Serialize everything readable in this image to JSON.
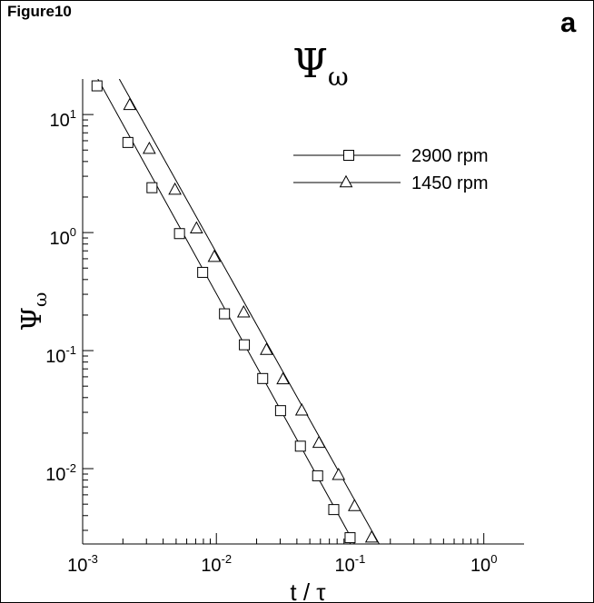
{
  "figure_label": "Figure10",
  "panel_letter": "a",
  "chart_data": {
    "type": "scatter",
    "title": "Ψω",
    "xlabel": "t / τ",
    "ylabel": "Ψω",
    "xscale": "log",
    "yscale": "log",
    "xlim": [
      0.001,
      2
    ],
    "ylim": [
      0.0023,
      20
    ],
    "x_ticks": [
      {
        "value": 0.001,
        "base": "10",
        "exp": "-3"
      },
      {
        "value": 0.01,
        "base": "10",
        "exp": "-2"
      },
      {
        "value": 0.1,
        "base": "10",
        "exp": "-1"
      },
      {
        "value": 1,
        "base": "10",
        "exp": "0"
      }
    ],
    "y_ticks": [
      {
        "value": 0.01,
        "base": "10",
        "exp": "-2"
      },
      {
        "value": 0.1,
        "base": "10",
        "exp": "-1"
      },
      {
        "value": 1,
        "base": "10",
        "exp": "0"
      },
      {
        "value": 10,
        "base": "10",
        "exp": "1"
      }
    ],
    "legend_position": "top-right",
    "grid": false,
    "series": [
      {
        "name": "2900 rpm",
        "marker": "square",
        "fit_line": {
          "x": [
            0.0013,
            0.108
          ],
          "y": [
            20,
            0.0023
          ]
        },
        "points": [
          {
            "x": 0.00128,
            "y": 17.5
          },
          {
            "x": 0.00218,
            "y": 5.8
          },
          {
            "x": 0.0033,
            "y": 2.4
          },
          {
            "x": 0.0053,
            "y": 0.98
          },
          {
            "x": 0.0079,
            "y": 0.46
          },
          {
            "x": 0.0115,
            "y": 0.205
          },
          {
            "x": 0.0162,
            "y": 0.112
          },
          {
            "x": 0.0222,
            "y": 0.058
          },
          {
            "x": 0.0302,
            "y": 0.031
          },
          {
            "x": 0.0425,
            "y": 0.0155
          },
          {
            "x": 0.0572,
            "y": 0.0087
          },
          {
            "x": 0.0755,
            "y": 0.0045
          },
          {
            "x": 0.1,
            "y": 0.0026
          }
        ]
      },
      {
        "name": "1450 rpm",
        "marker": "triangle",
        "fit_line": {
          "x": [
            0.00188,
            0.165
          ],
          "y": [
            20,
            0.0023
          ]
        },
        "points": [
          {
            "x": 0.00225,
            "y": 12.0
          },
          {
            "x": 0.00315,
            "y": 5.1
          },
          {
            "x": 0.0049,
            "y": 2.3
          },
          {
            "x": 0.0071,
            "y": 1.08
          },
          {
            "x": 0.00965,
            "y": 0.62
          },
          {
            "x": 0.016,
            "y": 0.21
          },
          {
            "x": 0.0237,
            "y": 0.101
          },
          {
            "x": 0.0315,
            "y": 0.057
          },
          {
            "x": 0.0435,
            "y": 0.031
          },
          {
            "x": 0.0585,
            "y": 0.0165
          },
          {
            "x": 0.082,
            "y": 0.0088
          },
          {
            "x": 0.108,
            "y": 0.0048
          },
          {
            "x": 0.145,
            "y": 0.0026
          }
        ]
      }
    ]
  }
}
